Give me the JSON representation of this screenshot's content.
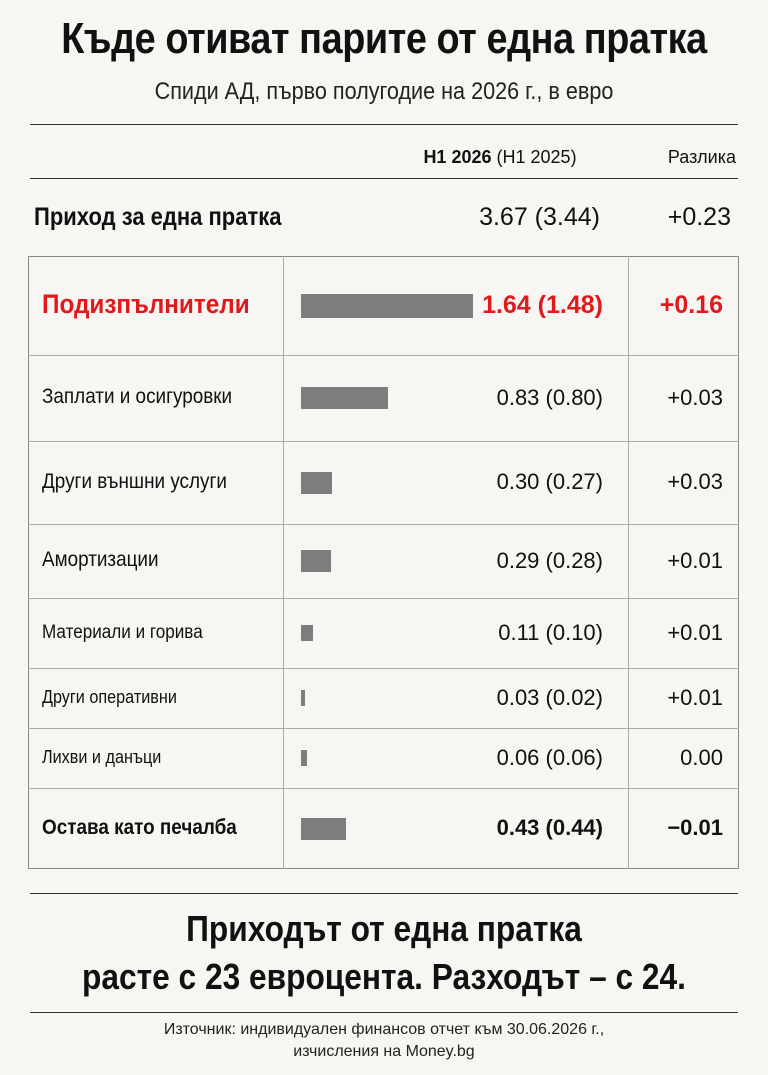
{
  "title": "Къде отиват парите от една пратка",
  "subtitle": "Спиди АД, първо полугодие на 2026 г., в евро",
  "header": {
    "current_label": "H1 2026",
    "previous_label": "(H1 2025)",
    "diff_label": "Разлика"
  },
  "income": {
    "label": "Приход за една пратка",
    "value_text": "3.67 (3.44)",
    "diff_text": "+0.23"
  },
  "chart_data": {
    "type": "bar",
    "orientation": "horizontal",
    "categories": [
      "Подизпълнители",
      "Заплати и осигуровки",
      "Други външни услуги",
      "Амортизации",
      "Материали и горива",
      "Други оперативни",
      "Лихви и данъци",
      "Остава като печалба"
    ],
    "series": [
      {
        "name": "H1 2026",
        "values": [
          1.64,
          0.83,
          0.3,
          0.29,
          0.11,
          0.03,
          0.06,
          0.43
        ]
      },
      {
        "name": "H1 2025",
        "values": [
          1.48,
          0.8,
          0.27,
          0.28,
          0.1,
          0.02,
          0.06,
          0.44
        ]
      }
    ],
    "value_labels": [
      "1.64 (1.48)",
      "0.83 (0.80)",
      "0.30 (0.27)",
      "0.29 (0.28)",
      "0.11 (0.10)",
      "0.03 (0.02)",
      "0.06 (0.06)",
      "0.43 (0.44)"
    ],
    "differences": [
      "+0.16",
      "+0.03",
      "+0.03",
      "+0.01",
      "+0.01",
      "+0.01",
      "0.00",
      "−0.01"
    ],
    "highlight_index": 0,
    "bold_indices": [
      0,
      7
    ],
    "bar_color": "#7d7d7d",
    "highlight_color": "#e0191d"
  },
  "headline": {
    "line1": "Приходът от една пратка",
    "line2": "расте с 23 евроцента. Разходът – с 24."
  },
  "source": {
    "line1": "Източник: индивидуален финансов отчет към 30.06.2026 г.,",
    "line2": "изчисления на Money.bg"
  }
}
